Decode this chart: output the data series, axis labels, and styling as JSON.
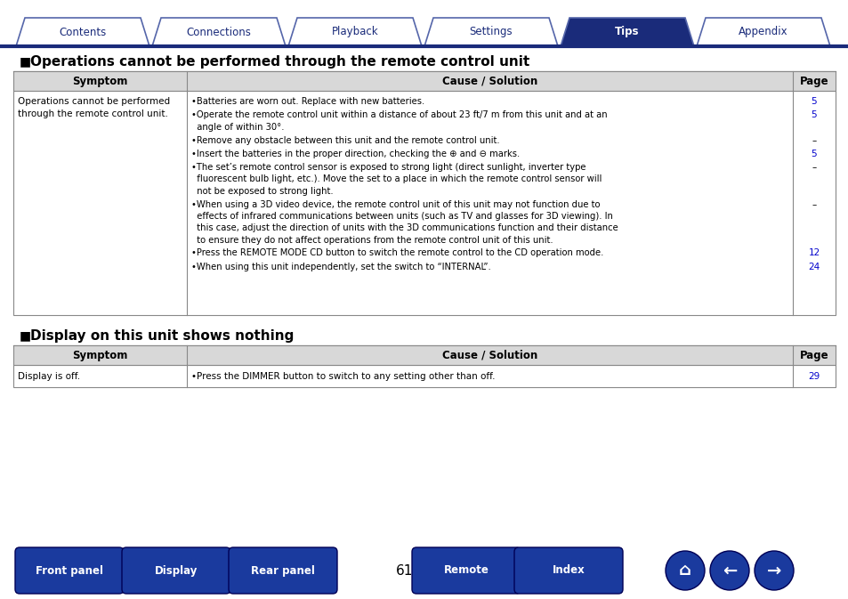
{
  "bg_color": "#ffffff",
  "nav_tabs": [
    "Contents",
    "Connections",
    "Playback",
    "Settings",
    "Tips",
    "Appendix"
  ],
  "active_tab": "Tips",
  "active_tab_color": "#1a2b7a",
  "inactive_tab_color": "#ffffff",
  "tab_border_color": "#5566aa",
  "nav_line_color": "#1a2b7a",
  "section1_title": "Operations cannot be performed through the remote control unit",
  "section2_title": "Display on this unit shows nothing",
  "table_header_bg": "#d8d8d8",
  "table_border_color": "#888888",
  "section1_symptom": "Operations cannot be performed\nthrough the remote control unit.",
  "section1_causes": [
    {
      "text": "•Batteries are worn out. Replace with new batteries.",
      "page": "5",
      "lines": 1
    },
    {
      "text": "•Operate the remote control unit within a distance of about 23 ft/7 m from this unit and at an\n  angle of within 30°.",
      "page": "5",
      "lines": 2
    },
    {
      "text": "•Remove any obstacle between this unit and the remote control unit.",
      "page": "–",
      "lines": 1
    },
    {
      "text": "•Insert the batteries in the proper direction, checking the ⊕ and ⊖ marks.",
      "page": "5",
      "lines": 1
    },
    {
      "text": "•The set’s remote control sensor is exposed to strong light (direct sunlight, inverter type\n  fluorescent bulb light, etc.). Move the set to a place in which the remote control sensor will\n  not be exposed to strong light.",
      "page": "–",
      "lines": 3
    },
    {
      "text": "•When using a 3D video device, the remote control unit of this unit may not function due to\n  effects of infrared communications between units (such as TV and glasses for 3D viewing). In\n  this case, adjust the direction of units with the 3D communications function and their distance\n  to ensure they do not affect operations from the remote control unit of this unit.",
      "page": "–",
      "lines": 4
    },
    {
      "text": "•Press the REMOTE MODE CD button to switch the remote control to the CD operation mode.",
      "page": "12",
      "lines": 1
    },
    {
      "text": "•When using this unit independently, set the switch to “INTERNAL”.",
      "page": "24",
      "lines": 1
    }
  ],
  "section2_symptom": "Display is off.",
  "section2_causes": [
    {
      "text": "•Press the DIMMER button to switch to any setting other than off.",
      "page": "29"
    }
  ],
  "page_number": "61",
  "bottom_buttons": [
    "Front panel",
    "Display",
    "Rear panel",
    "Remote",
    "Index"
  ],
  "button_color": "#1a3a9e",
  "button_text_color": "#ffffff",
  "link_color": "#0000cc"
}
